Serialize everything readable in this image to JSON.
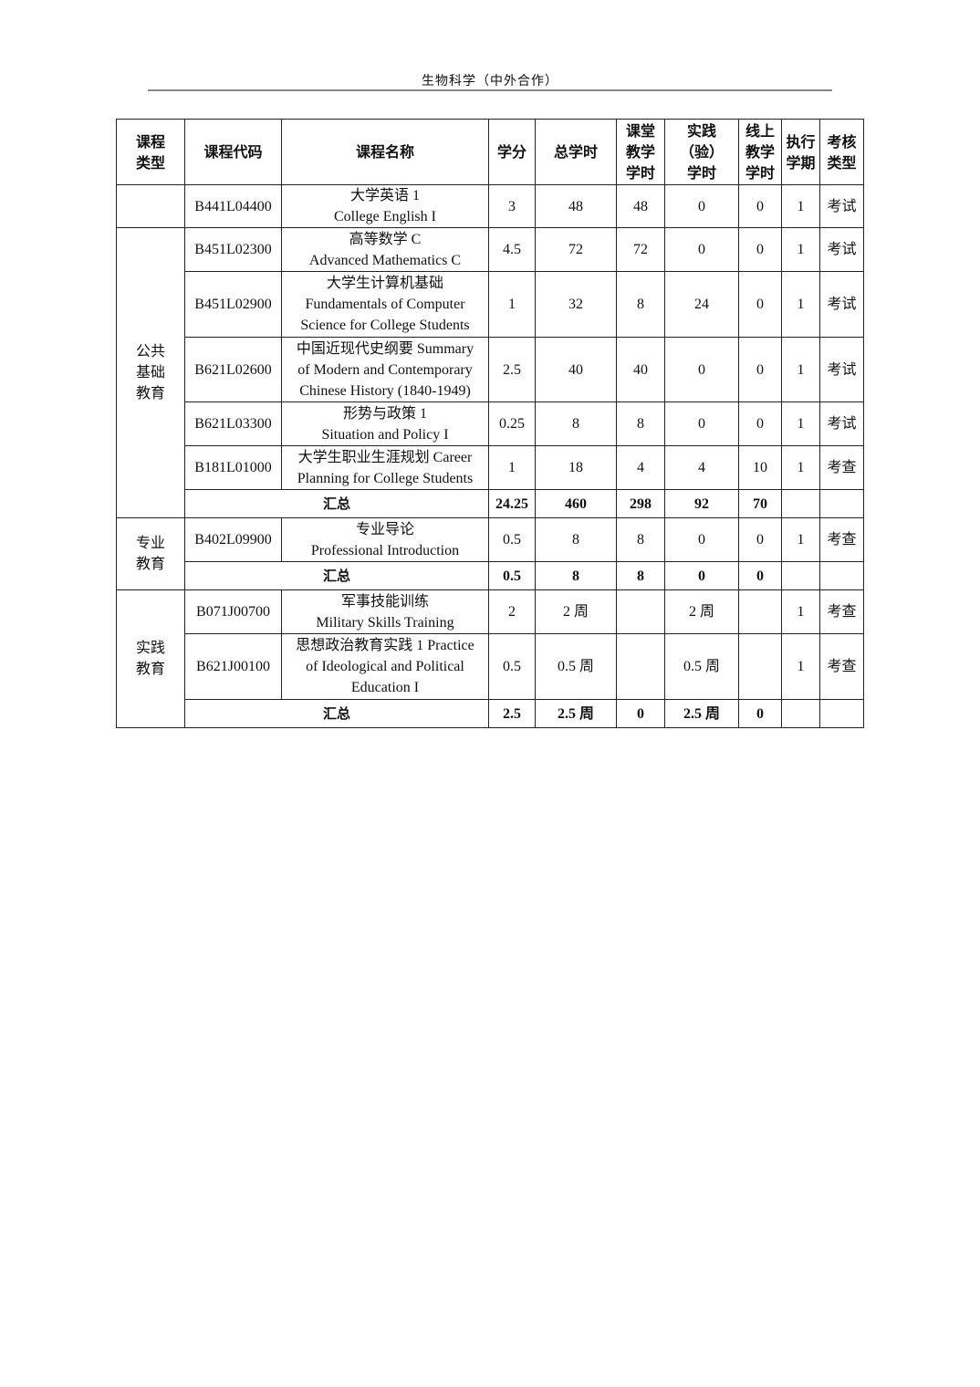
{
  "page_header": "生物科学（中外合作）",
  "table": {
    "headers": [
      [
        "课程",
        "类型"
      ],
      [
        "课程代码"
      ],
      [
        "课程名称"
      ],
      [
        "学分"
      ],
      [
        "总学时"
      ],
      [
        "课堂",
        "教学",
        "学时"
      ],
      [
        "实践",
        "（验）",
        "学时"
      ],
      [
        "线上",
        "教学",
        "学时"
      ],
      [
        "执行",
        "学期"
      ],
      [
        "考核",
        "类型"
      ]
    ],
    "groups": [
      {
        "type": [],
        "rows": [
          {
            "code": "B441L04400",
            "name": [
              "大学英语 1",
              "College English I"
            ],
            "credits": "3",
            "total_hours": "48",
            "class_hours": "48",
            "practice_hours": "0",
            "online_hours": "0",
            "semester": "1",
            "assessment": "考试"
          }
        ]
      },
      {
        "type": [
          "公共",
          "基础",
          "教育"
        ],
        "rows": [
          {
            "code": "B451L02300",
            "name": [
              "高等数学 C",
              "Advanced Mathematics C"
            ],
            "credits": "4.5",
            "total_hours": "72",
            "class_hours": "72",
            "practice_hours": "0",
            "online_hours": "0",
            "semester": "1",
            "assessment": "考试"
          },
          {
            "code": "B451L02900",
            "name": [
              "大学生计算机基础",
              "Fundamentals of Computer",
              "Science for College Students"
            ],
            "credits": "1",
            "total_hours": "32",
            "class_hours": "8",
            "practice_hours": "24",
            "online_hours": "0",
            "semester": "1",
            "assessment": "考试"
          },
          {
            "code": "B621L02600",
            "name": [
              "中国近现代史纲要 Summary",
              "of Modern and Contemporary",
              "Chinese History (1840-1949)"
            ],
            "credits": "2.5",
            "total_hours": "40",
            "class_hours": "40",
            "practice_hours": "0",
            "online_hours": "0",
            "semester": "1",
            "assessment": "考试"
          },
          {
            "code": "B621L03300",
            "name": [
              "形势与政策 1",
              "Situation and Policy I"
            ],
            "credits": "0.25",
            "total_hours": "8",
            "class_hours": "8",
            "practice_hours": "0",
            "online_hours": "0",
            "semester": "1",
            "assessment": "考试"
          },
          {
            "code": "B181L01000",
            "name": [
              "大学生职业生涯规划 Career",
              "Planning for College Students"
            ],
            "credits": "1",
            "total_hours": "18",
            "class_hours": "4",
            "practice_hours": "4",
            "online_hours": "10",
            "semester": "1",
            "assessment": "考查"
          }
        ],
        "summary": {
          "label": "汇总",
          "credits": "24.25",
          "total_hours": "460",
          "class_hours": "298",
          "practice_hours": "92",
          "online_hours": "70"
        }
      },
      {
        "type": [
          "专业",
          "教育"
        ],
        "rows": [
          {
            "code": "B402L09900",
            "name": [
              "专业导论",
              "Professional    Introduction"
            ],
            "credits": "0.5",
            "total_hours": "8",
            "class_hours": "8",
            "practice_hours": "0",
            "online_hours": "0",
            "semester": "1",
            "assessment": "考查"
          }
        ],
        "summary": {
          "label": "汇总",
          "credits": "0.5",
          "total_hours": "8",
          "class_hours": "8",
          "practice_hours": "0",
          "online_hours": "0"
        }
      },
      {
        "type": [
          "实践",
          "教育"
        ],
        "rows": [
          {
            "code": "B071J00700",
            "name": [
              "军事技能训练",
              "Military Skills Training"
            ],
            "credits": "2",
            "total_hours": "2 周",
            "class_hours": "",
            "practice_hours": "2 周",
            "online_hours": "",
            "semester": "1",
            "assessment": "考查"
          },
          {
            "code": "B621J00100",
            "name": [
              "思想政治教育实践 1 Practice",
              "of Ideological and Political",
              "Education I"
            ],
            "credits": "0.5",
            "total_hours": "0.5 周",
            "class_hours": "",
            "practice_hours": "0.5 周",
            "online_hours": "",
            "semester": "1",
            "assessment": "考查"
          }
        ],
        "summary": {
          "label": "汇总",
          "credits": "2.5",
          "total_hours": "2.5 周",
          "class_hours": "0",
          "practice_hours": "2.5 周",
          "online_hours": "0"
        }
      }
    ]
  }
}
